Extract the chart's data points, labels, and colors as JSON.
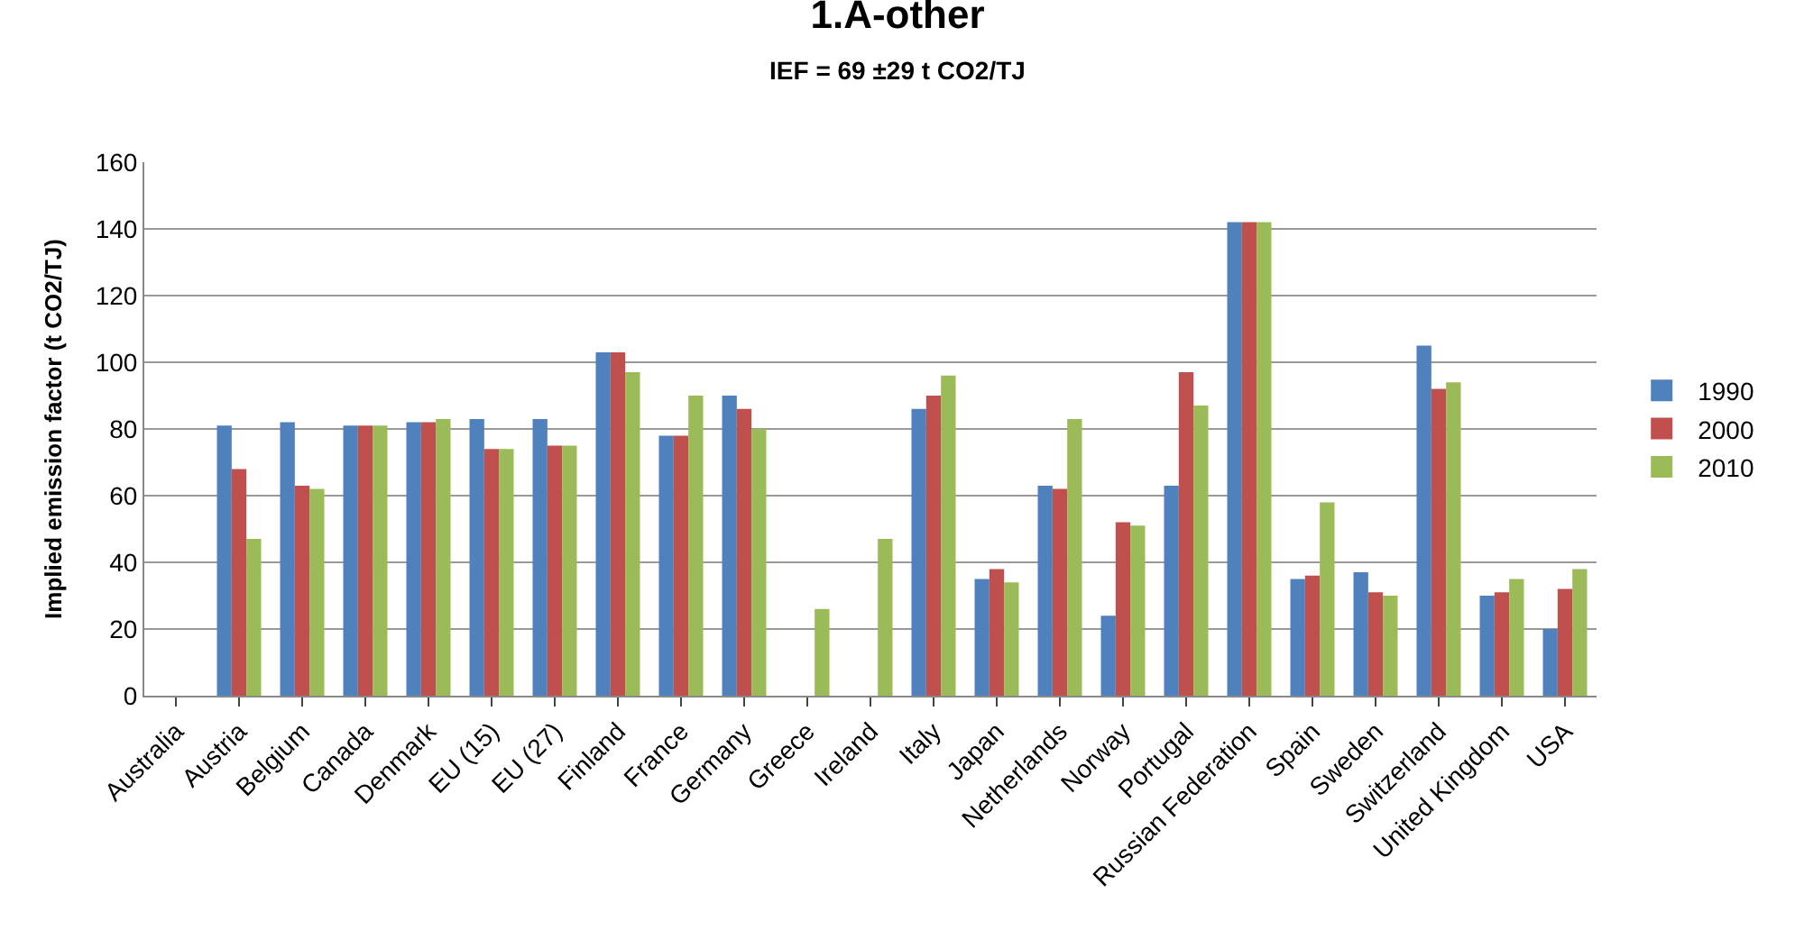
{
  "chart_data": {
    "type": "bar",
    "title": "1.A-other",
    "subtitle": "IEF = 69 ±29 t CO2/TJ",
    "ylabel": "Implied emission factor (t CO2/TJ)",
    "categories": [
      "Australia",
      "Austria",
      "Belgium",
      "Canada",
      "Denmark",
      "EU (15)",
      "EU (27)",
      "Finland",
      "France",
      "Germany",
      "Greece",
      "Ireland",
      "Italy",
      "Japan",
      "Netherlands",
      "Norway",
      "Portugal",
      "Russian Federation",
      "Spain",
      "Sweden",
      "Switzerland",
      "United Kingdom",
      "USA"
    ],
    "series": [
      {
        "name": "1990",
        "color": "#4f81bd",
        "values": [
          null,
          81,
          82,
          81,
          82,
          83,
          83,
          103,
          78,
          90,
          null,
          null,
          86,
          35,
          63,
          24,
          63,
          142,
          35,
          37,
          105,
          30,
          20
        ]
      },
      {
        "name": "2000",
        "color": "#c0504d",
        "values": [
          null,
          68,
          63,
          81,
          82,
          74,
          75,
          103,
          78,
          86,
          null,
          null,
          90,
          38,
          62,
          52,
          97,
          142,
          36,
          31,
          92,
          31,
          32
        ]
      },
      {
        "name": "2010",
        "color": "#9bbb59",
        "values": [
          null,
          47,
          62,
          81,
          83,
          74,
          75,
          97,
          90,
          80,
          26,
          47,
          96,
          34,
          83,
          51,
          87,
          142,
          58,
          30,
          94,
          35,
          38
        ]
      }
    ],
    "ylim": [
      0,
      160
    ],
    "yticks": [
      0,
      20,
      40,
      60,
      80,
      100,
      120,
      140,
      160
    ],
    "grid": "y",
    "legend": "right"
  }
}
